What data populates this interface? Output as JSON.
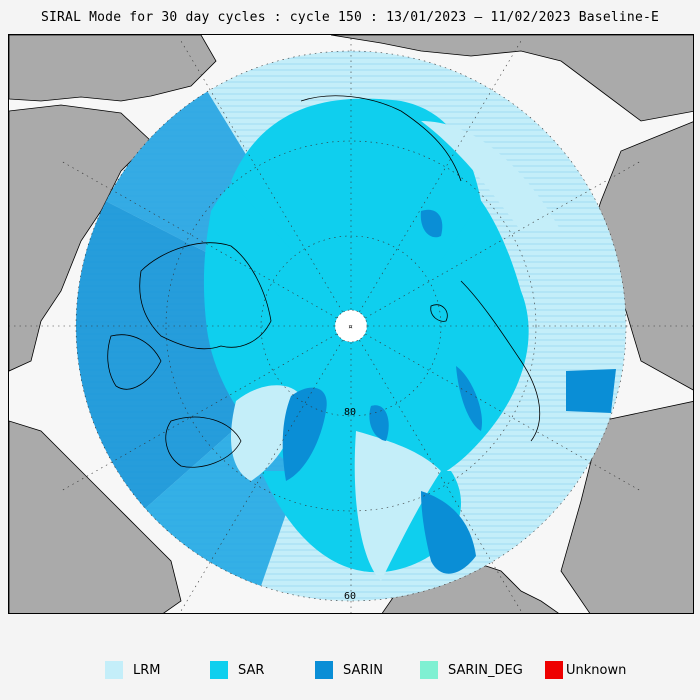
{
  "title": "SIRAL Mode for 30 day cycles : cycle 150 : 13/01/2023 – 11/02/2023 Baseline-E",
  "map": {
    "lat_labels": [
      "80",
      "60"
    ]
  },
  "legend": {
    "items": [
      {
        "label": "LRM",
        "color": "#c4eef9"
      },
      {
        "label": "SAR",
        "color": "#0fcfee"
      },
      {
        "label": "SARIN",
        "color": "#0a8ed6"
      },
      {
        "label": "SARIN_DEG",
        "color": "#7ff0d2"
      },
      {
        "label": "Unknown",
        "color": "#ee0000"
      }
    ]
  },
  "colors": {
    "land": "#aaaaaa",
    "ocean": "#f7f7f7",
    "pole_hole": "#ffffff"
  }
}
